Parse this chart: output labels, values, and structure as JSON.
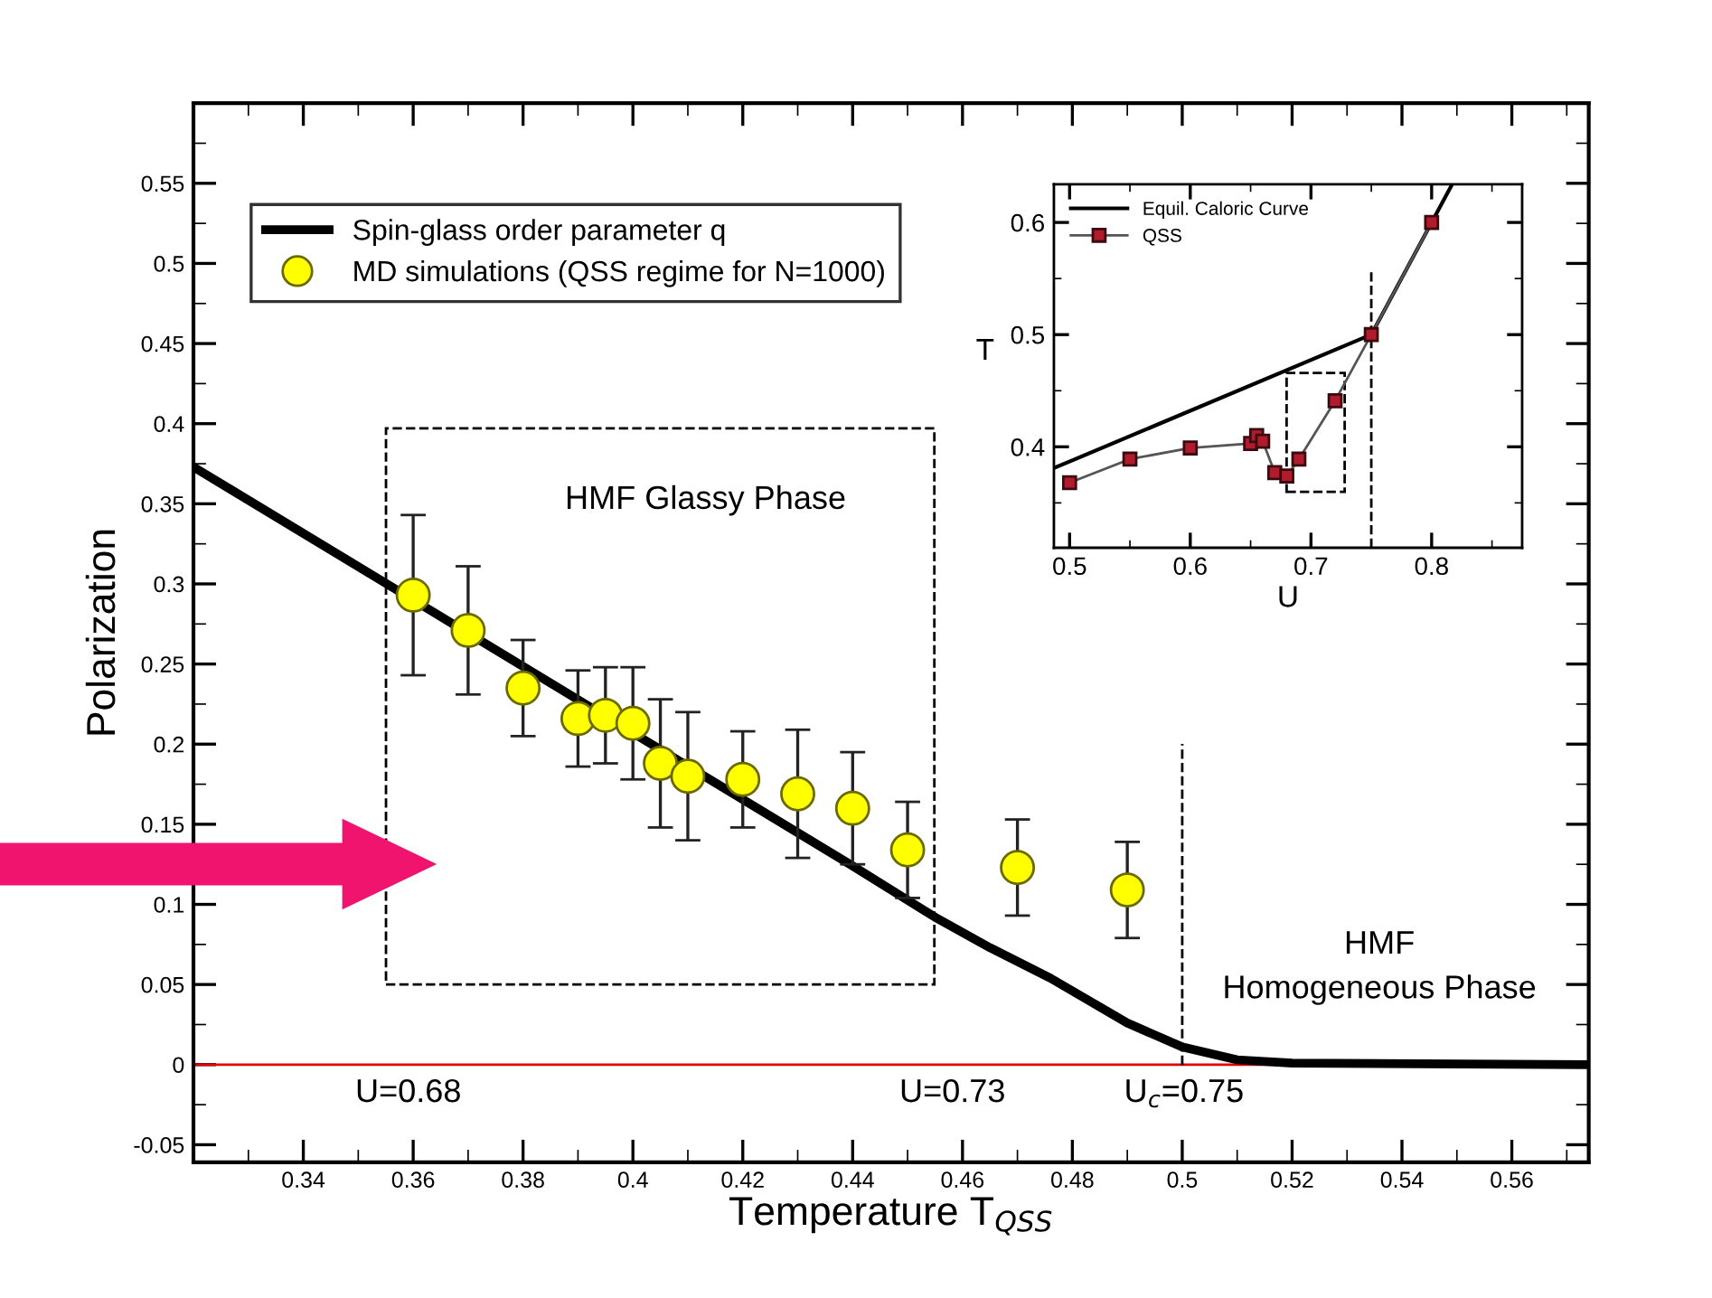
{
  "chart_data": [
    {
      "type": "line",
      "xlabel": "Temperature T$_{QSS}$",
      "ylabel": "Polarization",
      "xlim": [
        0.32,
        0.574
      ],
      "ylim": [
        -0.061,
        0.6
      ],
      "xticks": [
        0.34,
        0.36,
        0.38,
        0.4,
        0.42,
        0.44,
        0.46,
        0.48,
        0.5,
        0.52,
        0.54,
        0.56
      ],
      "yticks": [
        {
          "value": -0.05,
          "label": "-0.05"
        },
        0,
        0.05,
        0.1,
        0.15,
        0.2,
        0.25,
        0.3,
        0.35,
        0.4,
        0.45,
        0.5,
        0.55
      ],
      "grid": false,
      "legend": "top left",
      "series": [
        {
          "name": "Spin-glass order parameter q",
          "color": "#000000",
          "marker": "none",
          "line_style": "solid",
          "x": [
            0.32,
            0.36,
            0.4,
            0.44,
            0.455,
            0.465,
            0.476,
            0.49,
            0.5,
            0.51,
            0.52,
            0.574
          ],
          "values": [
            0.373,
            0.29,
            0.207,
            0.124,
            0.092,
            0.073,
            0.054,
            0.026,
            0.011,
            0.003,
            0.001,
            0.0
          ]
        },
        {
          "name": "MD simulations (QSS regime for N=1000)",
          "type": "scatter",
          "color": "#ffff00",
          "marker": "circle",
          "x": [
            0.36,
            0.37,
            0.38,
            0.39,
            0.395,
            0.4,
            0.405,
            0.41,
            0.42,
            0.43,
            0.44,
            0.45,
            0.47,
            0.49
          ],
          "values": [
            0.293,
            0.271,
            0.235,
            0.216,
            0.218,
            0.213,
            0.188,
            0.18,
            0.178,
            0.169,
            0.16,
            0.134,
            0.123,
            0.109
          ],
          "errors": [
            0.05,
            0.04,
            0.03,
            0.03,
            0.03,
            0.035,
            0.04,
            0.04,
            0.03,
            0.04,
            0.035,
            0.03,
            0.03,
            0.03
          ]
        }
      ],
      "ref_lines": [
        {
          "axis": "y",
          "value": 0,
          "color": "#e00000",
          "line_style": "solid"
        },
        {
          "axis": "x",
          "value": 0.5,
          "color": "#000000",
          "line_style": "dashed"
        }
      ],
      "annotations": [
        "HMF Glassy Phase",
        "HMF\nHomogeneous Phase",
        "U=0.68",
        "U=0.73",
        "U$_{c}$=0.75"
      ]
    },
    {
      "type": "line",
      "xlabel": "U",
      "ylabel": "T",
      "xlim": [
        0.487,
        0.875
      ],
      "ylim": [
        0.31,
        0.634
      ],
      "xticks": [
        0.5,
        0.6,
        0.7,
        0.8
      ],
      "yticks": [
        0.4,
        0.5,
        0.6
      ],
      "grid": false,
      "legend": "top left",
      "series": [
        {
          "name": "Equil. Caloric Curve",
          "color": "#000000",
          "marker": "none",
          "line_style": "solid",
          "x": [
            0.487,
            0.75,
            0.817
          ],
          "values": [
            0.381,
            0.5,
            0.634
          ]
        },
        {
          "name": "QSS",
          "color": "#b01c2c",
          "marker": "square",
          "line_style": "solid",
          "x": [
            0.5,
            0.55,
            0.6,
            0.65,
            0.655,
            0.66,
            0.67,
            0.68,
            0.69,
            0.72,
            0.75,
            0.8
          ],
          "values": [
            0.368,
            0.389,
            0.399,
            0.403,
            0.41,
            0.405,
            0.377,
            0.374,
            0.389,
            0.441,
            0.5,
            0.6
          ]
        }
      ],
      "ref_lines": [
        {
          "axis": "x",
          "value": 0.75,
          "color": "#000000",
          "line_style": "dashed"
        }
      ]
    }
  ]
}
